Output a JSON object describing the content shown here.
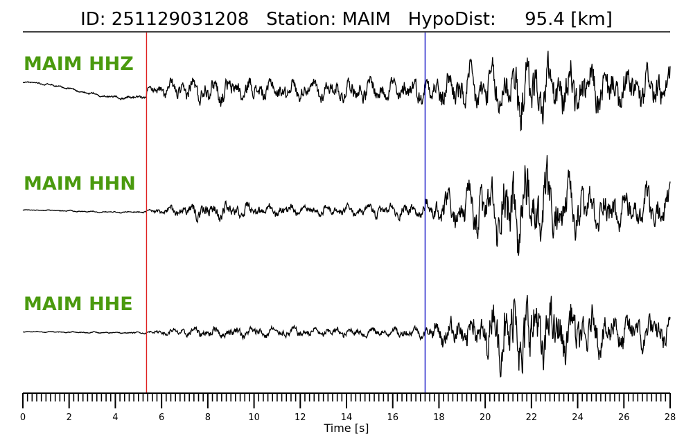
{
  "chart_data": {
    "type": "line",
    "title": "ID: 251129031208   Station: MAIM   HypoDist:     95.4 [km]",
    "xlabel": "Time [s]",
    "ylabel": "",
    "xlim": [
      0,
      28
    ],
    "x_tick_labels": [
      "0",
      "2",
      "4",
      "6",
      "8",
      "10",
      "12",
      "14",
      "16",
      "18",
      "20",
      "22",
      "24",
      "26",
      "28"
    ],
    "grid": false,
    "markers": [
      {
        "name": "P pick",
        "time": 5.35,
        "color": "#e02020"
      },
      {
        "name": "S pick",
        "time": 17.4,
        "color": "#1a1ac8"
      }
    ],
    "series": [
      {
        "name": "MAIM HHZ",
        "color": "#000000",
        "envelope": [
          [
            0,
            0.02
          ],
          [
            5.35,
            0.05
          ],
          [
            6,
            0.2
          ],
          [
            8,
            0.35
          ],
          [
            10,
            0.3
          ],
          [
            12,
            0.25
          ],
          [
            14,
            0.3
          ],
          [
            17.3,
            0.35
          ],
          [
            18,
            0.45
          ],
          [
            20,
            0.6
          ],
          [
            21.5,
            0.85
          ],
          [
            22.5,
            0.8
          ],
          [
            24,
            0.65
          ],
          [
            26,
            0.6
          ],
          [
            28,
            0.55
          ]
        ]
      },
      {
        "name": "MAIM HHN",
        "color": "#000000",
        "envelope": [
          [
            0,
            0.01
          ],
          [
            5.35,
            0.02
          ],
          [
            6,
            0.08
          ],
          [
            8,
            0.2
          ],
          [
            10,
            0.15
          ],
          [
            12,
            0.12
          ],
          [
            14,
            0.12
          ],
          [
            17.3,
            0.18
          ],
          [
            18,
            0.35
          ],
          [
            20,
            0.6
          ],
          [
            21.5,
            1.0
          ],
          [
            22.5,
            0.85
          ],
          [
            24,
            0.55
          ],
          [
            26,
            0.4
          ],
          [
            28,
            0.5
          ]
        ]
      },
      {
        "name": "MAIM HHE",
        "color": "#000000",
        "envelope": [
          [
            0,
            0.01
          ],
          [
            5.35,
            0.02
          ],
          [
            6,
            0.06
          ],
          [
            8,
            0.12
          ],
          [
            10,
            0.12
          ],
          [
            12,
            0.1
          ],
          [
            14,
            0.1
          ],
          [
            17.3,
            0.12
          ],
          [
            18,
            0.3
          ],
          [
            20,
            0.5
          ],
          [
            21.5,
            1.1
          ],
          [
            22.5,
            0.8
          ],
          [
            24,
            0.55
          ],
          [
            26,
            0.45
          ],
          [
            28,
            0.35
          ]
        ]
      }
    ]
  }
}
